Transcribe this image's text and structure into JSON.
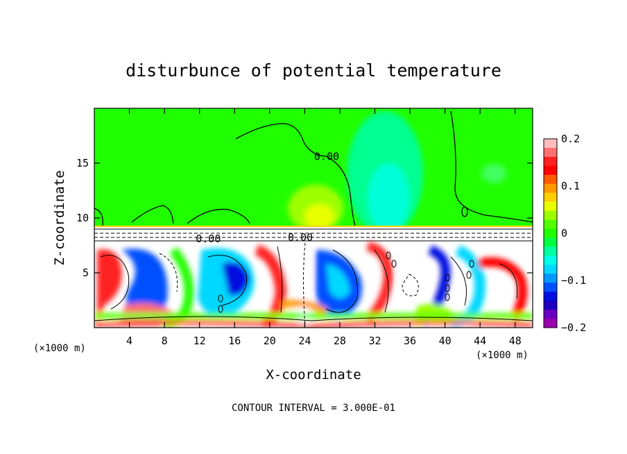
{
  "chart_data": {
    "type": "heatmap",
    "title": "disturbunce of potential temperature",
    "xlabel": "X-coordinate",
    "ylabel": "Z-coordinate",
    "x_unit": "(×1000 m)",
    "x_unit_right": "(×1000 m)",
    "xlim": [
      0,
      50
    ],
    "ylim": [
      0,
      20
    ],
    "x_ticks": [
      4,
      8,
      12,
      16,
      20,
      24,
      28,
      32,
      36,
      40,
      44,
      48
    ],
    "y_ticks": [
      5,
      10,
      15
    ],
    "colorbar": {
      "range": [
        -0.2,
        0.2
      ],
      "tick_values": [
        0.2,
        0.1,
        0,
        -0.1,
        -0.2
      ],
      "tick_labels": [
        "0.2",
        "0.1",
        "0",
        "−0.1",
        "−0.2"
      ],
      "colors": [
        "#ffbdbd",
        "#ff7070",
        "#ff2020",
        "#ff0000",
        "#ff5a00",
        "#ff9a00",
        "#ffd000",
        "#e8ff00",
        "#9dff00",
        "#52ff00",
        "#20ff00",
        "#00ff40",
        "#00ffa0",
        "#00ffe8",
        "#00d8ff",
        "#0098ff",
        "#0050ff",
        "#0010e0",
        "#2000c0",
        "#6a00c0",
        "#9a00b0"
      ]
    },
    "contour_labels": [
      {
        "text": "0.00",
        "x": 26.5,
        "z": 15.3
      },
      {
        "text": "0.00",
        "x": 13.0,
        "z": 7.8
      },
      {
        "text": "0.00",
        "x": 23.5,
        "z": 7.9
      }
    ],
    "footer": "CONTOUR INTERVAL = 3.000E-01"
  }
}
